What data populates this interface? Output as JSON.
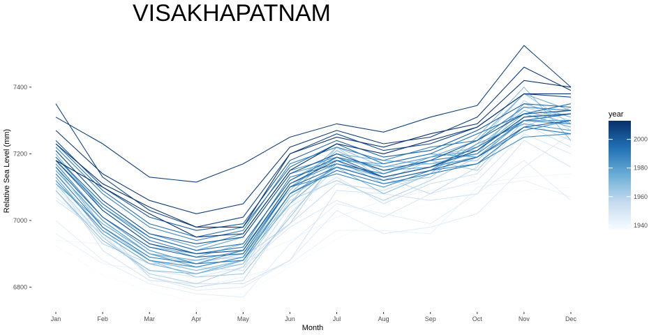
{
  "chart_data": {
    "type": "line",
    "title": "VISAKHAPATNAM",
    "xlabel": "Month",
    "ylabel": "Relative Sea Level (mm)",
    "categories": [
      "Jan",
      "Feb",
      "Mar",
      "Apr",
      "May",
      "Jun",
      "Jul",
      "Aug",
      "Sep",
      "Oct",
      "Nov",
      "Dec"
    ],
    "ylim": [
      6740,
      7540
    ],
    "yticks": [
      6800,
      7000,
      7200,
      7400
    ],
    "grid": false,
    "legend": {
      "title": "year",
      "placement": "right",
      "type": "continuous-colorbar",
      "ticks": [
        1940,
        1960,
        1980,
        2000
      ],
      "range": [
        1937,
        2013
      ],
      "colors": [
        "#f7fbff",
        "#c6dbef",
        "#6baed6",
        "#2171b5",
        "#08306b"
      ]
    },
    "series": [
      {
        "year": 1937,
        "values": [
          6925,
          6835,
          6790,
          6755,
          6780,
          6860,
          6945,
          7010,
          7050,
          7080,
          7090,
          7100
        ]
      },
      {
        "year": 1940,
        "values": [
          6940,
          6930,
          6900,
          6870,
          6880,
          6940,
          7010,
          7060,
          7090,
          7110,
          7130,
          7140
        ]
      },
      {
        "year": 1942,
        "values": [
          6960,
          6870,
          6850,
          6800,
          6830,
          6870,
          6970,
          6970,
          6960,
          7100,
          7120,
          7070
        ]
      },
      {
        "year": 1944,
        "values": [
          7000,
          6880,
          6810,
          6780,
          6770,
          6930,
          7050,
          7020,
          6990,
          7080,
          7180,
          7060
        ]
      },
      {
        "year": 1946,
        "values": [
          7070,
          6960,
          6830,
          6790,
          6800,
          6880,
          7030,
          6960,
          6980,
          7020,
          7160,
          7260
        ]
      },
      {
        "year": 1948,
        "values": [
          7100,
          6950,
          6850,
          6830,
          6860,
          6980,
          7060,
          7010,
          7080,
          7120,
          7260,
          7200
        ]
      },
      {
        "year": 1950,
        "values": [
          7120,
          6910,
          6820,
          6810,
          6810,
          6880,
          7090,
          7080,
          7060,
          7080,
          7240,
          7160
        ]
      },
      {
        "year": 1952,
        "values": [
          7060,
          6960,
          6870,
          6860,
          6850,
          7040,
          7130,
          7050,
          7110,
          7140,
          7290,
          7220
        ]
      },
      {
        "year": 1954,
        "values": [
          7140,
          7000,
          6880,
          6850,
          6870,
          6990,
          7110,
          7090,
          7140,
          7200,
          7300,
          7240
        ]
      },
      {
        "year": 1956,
        "values": [
          7180,
          6980,
          6830,
          6800,
          6820,
          7020,
          7160,
          7130,
          7080,
          7160,
          7360,
          7270
        ]
      },
      {
        "year": 1958,
        "values": [
          7090,
          6930,
          6870,
          6880,
          6890,
          6990,
          7190,
          7120,
          7150,
          7210,
          7340,
          7300
        ]
      },
      {
        "year": 1960,
        "values": [
          7110,
          6950,
          6840,
          6810,
          6860,
          7060,
          7120,
          7060,
          7120,
          7190,
          7280,
          7340
        ]
      },
      {
        "year": 1962,
        "values": [
          7150,
          7000,
          6900,
          6870,
          6900,
          7050,
          7220,
          7120,
          7180,
          7150,
          7300,
          7320
        ]
      },
      {
        "year": 1964,
        "values": [
          7130,
          6970,
          6880,
          6830,
          6840,
          7010,
          7180,
          7110,
          7130,
          7230,
          7380,
          7290
        ]
      },
      {
        "year": 1966,
        "values": [
          7170,
          7010,
          6920,
          6900,
          6920,
          7090,
          7220,
          7160,
          7170,
          7180,
          7310,
          7330
        ]
      },
      {
        "year": 1968,
        "values": [
          7090,
          6940,
          6850,
          6840,
          6870,
          7070,
          7160,
          7080,
          7140,
          7250,
          7400,
          7240
        ]
      },
      {
        "year": 1970,
        "values": [
          7160,
          6980,
          6880,
          6850,
          6880,
          7080,
          7210,
          7140,
          7190,
          7220,
          7330,
          7290
        ]
      },
      {
        "year": 1972,
        "values": [
          7200,
          7030,
          6930,
          6890,
          6930,
          7120,
          7200,
          7180,
          7170,
          7200,
          7350,
          7310
        ]
      },
      {
        "year": 1974,
        "values": [
          7130,
          6960,
          6870,
          6840,
          6880,
          7050,
          7170,
          7140,
          7190,
          7240,
          7380,
          7330
        ]
      },
      {
        "year": 1976,
        "values": [
          7110,
          6990,
          6900,
          6880,
          6910,
          7100,
          7190,
          7150,
          7160,
          7210,
          7320,
          7280
        ]
      },
      {
        "year": 1978,
        "values": [
          7190,
          7040,
          6950,
          6910,
          6950,
          7140,
          7180,
          7170,
          7200,
          7190,
          7300,
          7300
        ]
      },
      {
        "year": 1980,
        "values": [
          7150,
          7000,
          6900,
          6860,
          6890,
          7080,
          7160,
          7120,
          7150,
          7230,
          7290,
          7270
        ]
      },
      {
        "year": 1982,
        "values": [
          7210,
          7060,
          6960,
          6920,
          6960,
          7150,
          7190,
          7160,
          7190,
          7210,
          7310,
          7320
        ]
      },
      {
        "year": 1984,
        "values": [
          7170,
          7010,
          6910,
          6870,
          6910,
          7110,
          7170,
          7130,
          7160,
          7190,
          7270,
          7300
        ]
      },
      {
        "year": 1986,
        "values": [
          7120,
          6970,
          6880,
          6860,
          6890,
          7100,
          7140,
          7100,
          7150,
          7170,
          7250,
          7260
        ]
      },
      {
        "year": 1988,
        "values": [
          7220,
          7080,
          6980,
          6940,
          6970,
          7170,
          7220,
          7180,
          7220,
          7240,
          7340,
          7330
        ]
      },
      {
        "year": 1990,
        "values": [
          7180,
          7040,
          6940,
          6900,
          6920,
          7130,
          7170,
          7140,
          7180,
          7200,
          7300,
          7290
        ]
      },
      {
        "year": 1992,
        "values": [
          7140,
          6980,
          6890,
          6870,
          6880,
          7080,
          7150,
          7110,
          7140,
          7170,
          7280,
          7260
        ]
      },
      {
        "year": 1994,
        "values": [
          7230,
          7090,
          6990,
          6950,
          6980,
          7160,
          7230,
          7170,
          7200,
          7260,
          7320,
          7350
        ]
      },
      {
        "year": 1996,
        "values": [
          7190,
          7050,
          6950,
          6910,
          6930,
          7120,
          7190,
          7130,
          7160,
          7220,
          7300,
          7320
        ]
      },
      {
        "year": 1998,
        "values": [
          7160,
          7010,
          6920,
          6890,
          6900,
          7100,
          7160,
          7120,
          7150,
          7190,
          7280,
          7300
        ]
      },
      {
        "year": 2000,
        "values": [
          7240,
          7100,
          7010,
          6970,
          6990,
          7180,
          7240,
          7190,
          7210,
          7270,
          7350,
          7340
        ]
      },
      {
        "year": 2002,
        "values": [
          7210,
          7060,
          6960,
          6930,
          6950,
          7140,
          7200,
          7150,
          7180,
          7240,
          7320,
          7330
        ]
      },
      {
        "year": 2004,
        "values": [
          7180,
          7030,
          6930,
          6900,
          6910,
          7110,
          7180,
          7130,
          7160,
          7210,
          7310,
          7320
        ]
      },
      {
        "year": 2006,
        "values": [
          7350,
          7130,
          7030,
          6980,
          7010,
          7200,
          7260,
          7210,
          7230,
          7280,
          7380,
          7370
        ]
      },
      {
        "year": 2008,
        "values": [
          7310,
          7230,
          7130,
          7115,
          7170,
          7250,
          7290,
          7265,
          7310,
          7345,
          7525,
          7400
        ]
      },
      {
        "year": 2010,
        "values": [
          7270,
          7140,
          7060,
          7020,
          7050,
          7220,
          7270,
          7230,
          7250,
          7310,
          7460,
          7390
        ]
      },
      {
        "year": 2012,
        "values": [
          7230,
          7110,
          7040,
          6980,
          6980,
          7200,
          7250,
          7220,
          7260,
          7290,
          7420,
          7400
        ]
      },
      {
        "year": 2013,
        "values": [
          7180,
          7100,
          7020,
          6950,
          6960,
          7150,
          7230,
          7200,
          7240,
          7280,
          7380,
          7380
        ]
      }
    ]
  }
}
